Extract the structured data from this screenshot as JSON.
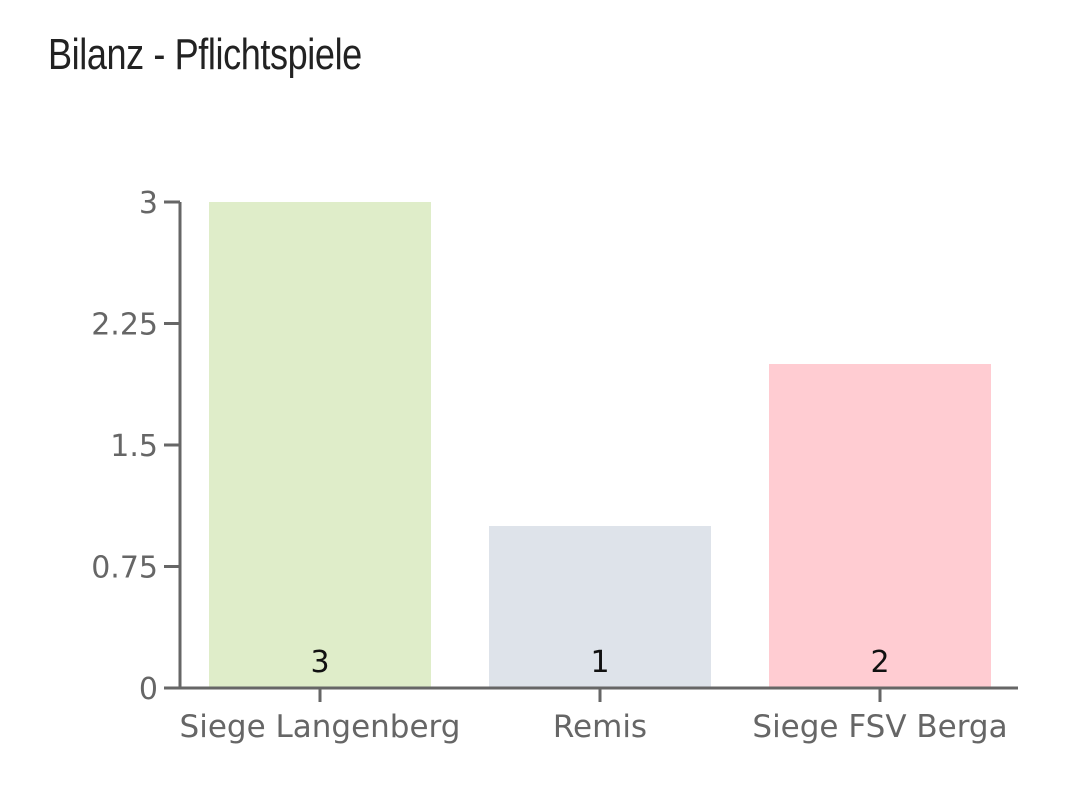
{
  "chart_data": {
    "type": "bar",
    "title": "Bilanz - Pflichtspiele",
    "xlabel": "",
    "ylabel": "",
    "categories": [
      "Siege Langenberg",
      "Remis",
      "Siege FSV Berga"
    ],
    "values": [
      3,
      1,
      2
    ],
    "data_labels": [
      "3",
      "1",
      "2"
    ],
    "colors": [
      "#dfedc9",
      "#dee3ea",
      "#ffccd2"
    ],
    "ylim": [
      0,
      3
    ],
    "yticks": [
      0,
      0.75,
      1.5,
      2.25,
      3
    ],
    "ytick_labels": [
      "0",
      "0.75",
      "1.5",
      "2.25",
      "3"
    ],
    "grid": false,
    "legend": "none"
  }
}
